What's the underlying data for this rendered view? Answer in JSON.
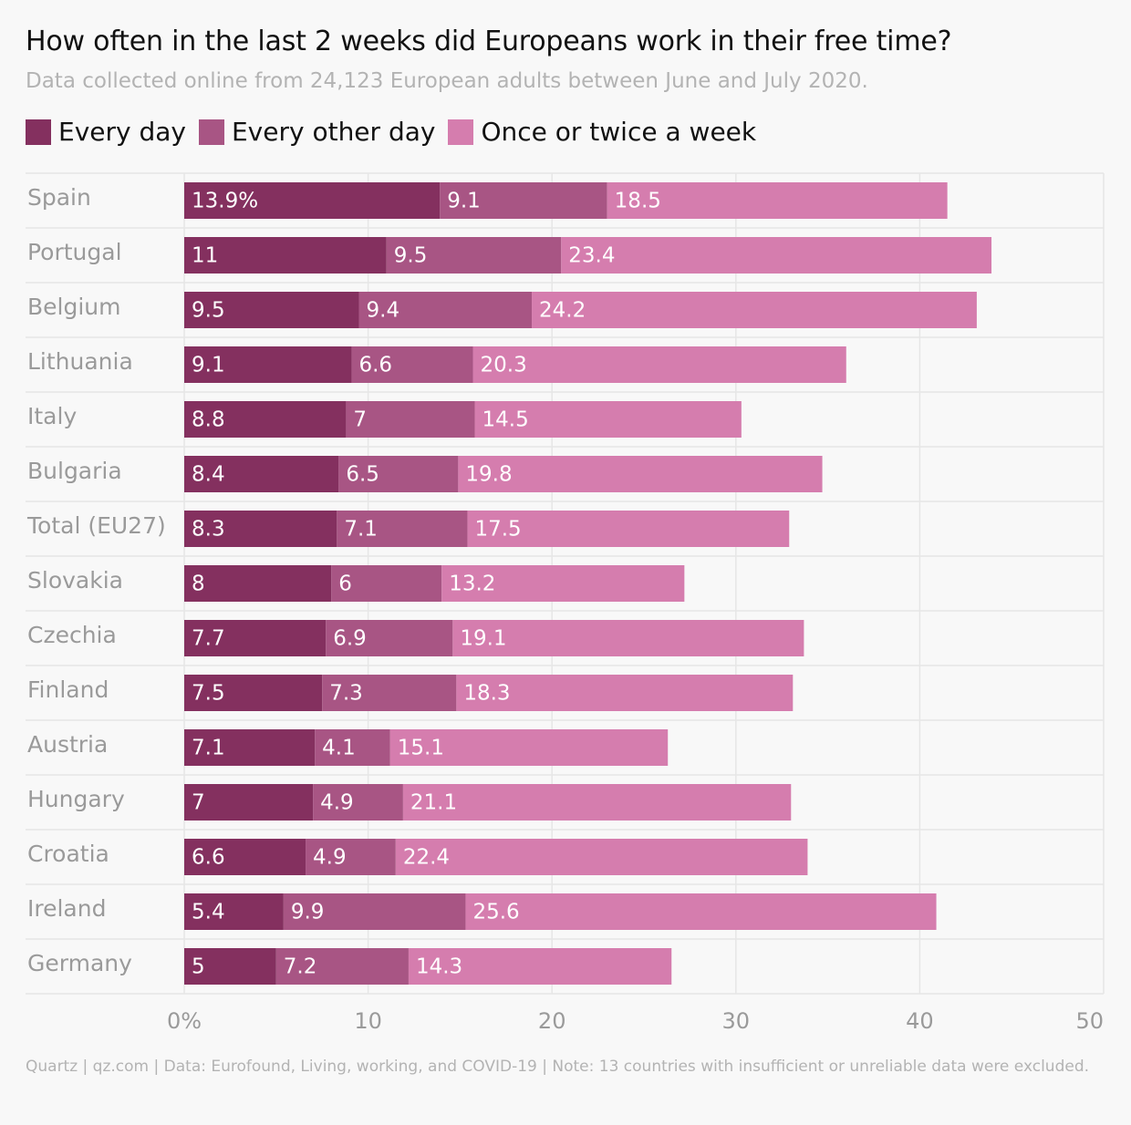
{
  "title": "How often in the last 2 weeks did Europeans work in their free time?",
  "subtitle": "Data collected online from 24,123 European adults between June and July 2020.",
  "legend": [
    {
      "label": "Every day",
      "color": "#84305f"
    },
    {
      "label": "Every other day",
      "color": "#a85584"
    },
    {
      "label": "Once or twice a week",
      "color": "#d57dae"
    }
  ],
  "footer": "Quartz | qz.com | Data: Eurofound, Living, working, and COVID-19 | Note: 13 countries with insufficient or unreliable data were excluded.",
  "chart_data": {
    "type": "bar",
    "orientation": "horizontal",
    "stacked": true,
    "categories": [
      "Spain",
      "Portugal",
      "Belgium",
      "Lithuania",
      "Italy",
      "Bulgaria",
      "Total (EU27)",
      "Slovakia",
      "Czechia",
      "Finland",
      "Austria",
      "Hungary",
      "Croatia",
      "Ireland",
      "Germany"
    ],
    "series": [
      {
        "name": "Every day",
        "color": "#84305f",
        "values": [
          13.9,
          11,
          9.5,
          9.1,
          8.8,
          8.4,
          8.3,
          8,
          7.7,
          7.5,
          7.1,
          7,
          6.6,
          5.4,
          5
        ]
      },
      {
        "name": "Every other day",
        "color": "#a85584",
        "values": [
          9.1,
          9.5,
          9.4,
          6.6,
          7,
          6.5,
          7.1,
          6,
          6.9,
          7.3,
          4.1,
          4.9,
          4.9,
          9.9,
          7.2
        ]
      },
      {
        "name": "Once or twice a week",
        "color": "#d57dae",
        "values": [
          18.5,
          23.4,
          24.2,
          20.3,
          14.5,
          19.8,
          17.5,
          13.2,
          19.1,
          18.3,
          15.1,
          21.1,
          22.4,
          25.6,
          14.3
        ]
      }
    ],
    "first_value_suffix": "%",
    "xlim": [
      0,
      50
    ],
    "xticks": [
      0,
      10,
      20,
      30,
      40,
      50
    ],
    "xtick_labels": [
      "0%",
      "10",
      "20",
      "30",
      "40",
      "50"
    ],
    "grid": true
  }
}
